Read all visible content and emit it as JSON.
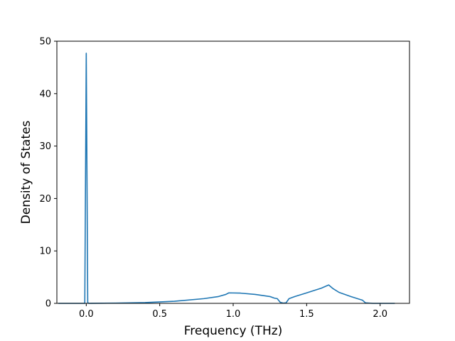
{
  "chart_data": {
    "type": "line",
    "title": "",
    "xlabel": "Frequency (THz)",
    "ylabel": "Density of States",
    "xlim": [
      -0.2,
      2.2
    ],
    "ylim": [
      0,
      50
    ],
    "x_ticks": [
      0.0,
      0.5,
      1.0,
      1.5,
      2.0
    ],
    "x_tick_labels": [
      "0.0",
      "0.5",
      "1.0",
      "1.5",
      "2.0"
    ],
    "y_ticks": [
      0,
      10,
      20,
      30,
      40,
      50
    ],
    "y_tick_labels": [
      "0",
      "10",
      "20",
      "30",
      "40",
      "50"
    ],
    "grid": false,
    "series": [
      {
        "color": "#1f77b4",
        "x": [
          -0.19,
          -0.01,
          0.0,
          0.01,
          0.02,
          0.2,
          0.4,
          0.6,
          0.8,
          0.9,
          0.95,
          0.97,
          1.05,
          1.15,
          1.25,
          1.28,
          1.3,
          1.32,
          1.34,
          1.36,
          1.38,
          1.42,
          1.5,
          1.6,
          1.65,
          1.68,
          1.72,
          1.8,
          1.88,
          1.9,
          1.95,
          2.1
        ],
        "y": [
          0,
          0,
          47.7,
          0.1,
          0,
          0.05,
          0.15,
          0.4,
          0.9,
          1.3,
          1.7,
          2.0,
          1.95,
          1.7,
          1.3,
          1.0,
          0.9,
          0.2,
          0.05,
          0.1,
          0.9,
          1.3,
          2.0,
          2.9,
          3.5,
          2.8,
          2.1,
          1.3,
          0.6,
          0.1,
          0,
          0
        ]
      }
    ]
  }
}
